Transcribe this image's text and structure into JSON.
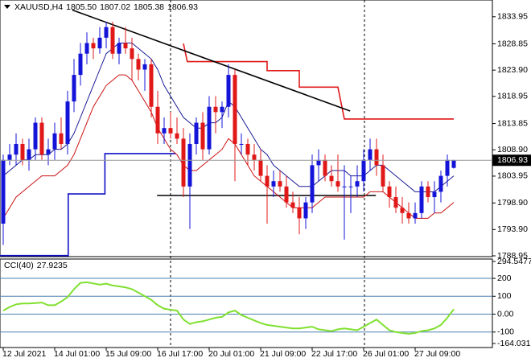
{
  "chart_data": {
    "type": "candlestick",
    "symbol": "XAUUSD,H4",
    "header_ohlc": [
      "1805.50",
      "1807.02",
      "1805.38",
      "1806.93"
    ],
    "categories": [
      "12 Jul 2021",
      null,
      null,
      null,
      null,
      null,
      null,
      null,
      "14 Jul 01:00",
      null,
      null,
      null,
      null,
      null,
      null,
      null,
      "15 Jul 09:00",
      null,
      null,
      null,
      null,
      null,
      null,
      null,
      "16 Jul 17:00",
      null,
      null,
      null,
      null,
      null,
      null,
      null,
      "20 Jul 01:00",
      null,
      null,
      null,
      null,
      null,
      null,
      null,
      "21 Jul 09:00",
      null,
      null,
      null,
      null,
      null,
      null,
      null,
      "22 Jul 17:00",
      null,
      null,
      null,
      null,
      null,
      null,
      null,
      "26 Jul 01:00",
      null,
      null,
      null,
      null,
      null,
      null,
      null,
      "27 Jul 09:00",
      null,
      null,
      null,
      null,
      null,
      null
    ],
    "open": [
      1795,
      1807,
      1808,
      1810,
      1807,
      1809,
      1814,
      1808,
      1809,
      1812,
      1810,
      1818,
      1823,
      1827,
      1829,
      1828,
      1830,
      1832,
      1827,
      1829,
      1828,
      1826,
      1824,
      1825,
      1817,
      1812,
      1813,
      1812,
      1811,
      1802,
      1810,
      1814,
      1809,
      1817,
      1816,
      1817,
      1823,
      1810,
      1810,
      1808,
      1807,
      1804,
      1802,
      1803,
      1802,
      1799,
      1798,
      1796,
      1799,
      1806,
      1807,
      1804,
      1803,
      1802,
      1802,
      1802,
      1803,
      1807,
      1809,
      1806,
      1802,
      1800,
      1798,
      1797,
      1796,
      1797,
      1802,
      1800,
      1801,
      1804,
      1805.5
    ],
    "high": [
      1808,
      1810,
      1812,
      1811,
      1811,
      1815,
      1815,
      1811,
      1814,
      1815,
      1820,
      1826,
      1829,
      1831,
      1830,
      1832,
      1833,
      1833,
      1830,
      1832,
      1830,
      1827,
      1826,
      1826,
      1820,
      1815,
      1816,
      1815,
      1813,
      1812,
      1815,
      1816,
      1819,
      1819,
      1818,
      1825,
      1824,
      1812,
      1811,
      1810,
      1809,
      1806,
      1805,
      1805,
      1804,
      1801,
      1800,
      1800,
      1808,
      1809,
      1808,
      1806,
      1808,
      1806,
      1804,
      1806,
      1809,
      1811,
      1811,
      1808,
      1803,
      1802,
      1800,
      1799,
      1799,
      1803,
      1803,
      1803,
      1805,
      1808,
      1807.02
    ],
    "low": [
      1791,
      1806,
      1806,
      1806,
      1805,
      1807,
      1807,
      1806,
      1807,
      1809,
      1808,
      1816,
      1821,
      1825,
      1826,
      1827,
      1828,
      1826,
      1825,
      1827,
      1822,
      1822,
      1820,
      1815,
      1810,
      1810,
      1811,
      1810,
      1800,
      1794,
      1808,
      1807,
      1808,
      1812,
      1813,
      1815,
      1803,
      1808,
      1806,
      1805,
      1803,
      1795,
      1800,
      1801,
      1798,
      1797,
      1793,
      1794,
      1797,
      1803,
      1803,
      1802,
      1801,
      1792,
      1797,
      1800,
      1801,
      1805,
      1804,
      1801,
      1798,
      1797,
      1795,
      1795,
      1795,
      1796,
      1799,
      1797,
      1799,
      1802,
      1805.38
    ],
    "close": [
      1807,
      1808,
      1810,
      1807,
      1809,
      1814,
      1808,
      1809,
      1812,
      1810,
      1818,
      1823,
      1827,
      1829,
      1828,
      1830,
      1832,
      1827,
      1829,
      1828,
      1826,
      1824,
      1825,
      1817,
      1812,
      1813,
      1812,
      1811,
      1802,
      1810,
      1814,
      1809,
      1817,
      1816,
      1817,
      1823,
      1810,
      1810,
      1808,
      1807,
      1804,
      1802,
      1803,
      1802,
      1799,
      1798,
      1796,
      1799,
      1806,
      1807,
      1804,
      1803,
      1802,
      1802,
      1802,
      1803,
      1807,
      1809,
      1806,
      1802,
      1800,
      1798,
      1797,
      1796,
      1797,
      1802,
      1800,
      1801,
      1804,
      1807,
      1806.93
    ],
    "up_color": "#1414d8",
    "down_color": "#e01818",
    "overlays": [
      {
        "color": "#1a1a96",
        "values": [
          1804,
          1805,
          1806,
          1807,
          1807,
          1808,
          1808,
          1808,
          1809,
          1809,
          1810,
          1812,
          1815,
          1818,
          1821,
          1824,
          1827,
          1828,
          1829,
          1829,
          1829,
          1828,
          1827,
          1826,
          1824,
          1821,
          1819,
          1817,
          1815,
          1814,
          1813,
          1813,
          1814,
          1814,
          1815,
          1818,
          1817,
          1815,
          1813,
          1811,
          1809,
          1808,
          1806,
          1805,
          1804,
          1803,
          1802,
          1802,
          1802,
          1803,
          1804,
          1805,
          1805,
          1805,
          1804,
          1804,
          1804,
          1805,
          1806,
          1806,
          1805,
          1804,
          1803,
          1802,
          1801,
          1801,
          1801,
          1801,
          1802,
          1803,
          1804
        ]
      },
      {
        "color": "#cc1010",
        "values": [
          1796,
          1798,
          1800,
          1801,
          1802,
          1803,
          1804,
          1804,
          1804,
          1805,
          1806,
          1808,
          1811,
          1814,
          1817,
          1819,
          1821,
          1822,
          1823,
          1823,
          1822,
          1820,
          1818,
          1816,
          1813,
          1811,
          1809,
          1808,
          1806,
          1805,
          1805,
          1806,
          1807,
          1808,
          1809,
          1811,
          1810,
          1808,
          1806,
          1804,
          1803,
          1802,
          1801,
          1800,
          1799,
          1798,
          1798,
          1798,
          1798,
          1799,
          1800,
          1800,
          1800,
          1800,
          1800,
          1800,
          1800,
          1801,
          1801,
          1801,
          1800,
          1799,
          1798,
          1797,
          1796,
          1796,
          1796,
          1797,
          1797,
          1798,
          1799
        ]
      }
    ],
    "drawings": [
      {
        "color": "#1010c8",
        "x": [
          -0.5,
          10.1,
          10.1,
          15.8,
          15.8,
          26.8
        ],
        "y": [
          1789,
          1789,
          1800.6,
          1800.6,
          1808.2,
          1808.2
        ]
      },
      {
        "color": "#e01818",
        "x": [
          28,
          28.6,
          41,
          41,
          46,
          46,
          52,
          53,
          70
        ],
        "y": [
          1828.9,
          1825.5,
          1825.5,
          1823.8,
          1823.8,
          1820.7,
          1820.7,
          1814.7,
          1814.7
        ]
      },
      {
        "color": "#000000",
        "x": [
          10.75,
          53.9
        ],
        "y": [
          1835.2,
          1816.2
        ]
      },
      {
        "color": "#000000",
        "x": [
          23.9,
          57.9
        ],
        "y": [
          1800.3,
          1800.3
        ]
      }
    ],
    "ylim": [
      1788.95,
      1837.1
    ],
    "yticks": [
      1788.95,
      {
        "value": 1793.9,
        "label": "1793.90"
      },
      {
        "value": 1798.9,
        "label": "1798.90"
      },
      1803.95,
      {
        "value": 1808.9,
        "label": "1808.90"
      },
      1813.85,
      1818.95,
      {
        "value": 1823.9,
        "label": "1823.90"
      },
      1828.85,
      1833.95
    ],
    "cci": {
      "label": "CCI(40)",
      "color": "#80e030",
      "level_color": "#4a7fb0",
      "values": [
        20,
        40,
        55,
        60,
        60,
        62,
        65,
        50,
        50,
        70,
        95,
        140,
        175,
        178,
        172,
        165,
        170,
        160,
        155,
        150,
        140,
        120,
        100,
        80,
        50,
        30,
        25,
        20,
        -30,
        -55,
        -45,
        -40,
        -30,
        -20,
        -15,
        10,
        20,
        -5,
        -20,
        -35,
        -50,
        -60,
        -65,
        -70,
        -75,
        -80,
        -80,
        -75,
        -70,
        -85,
        -90,
        -95,
        -85,
        -80,
        -85,
        -90,
        -70,
        -50,
        -30,
        -60,
        -90,
        -100,
        -105,
        -110,
        -105,
        -95,
        -90,
        -80,
        -60,
        -20,
        27.9235
      ],
      "ylim": [
        -164.0316,
        294.5477
      ],
      "yticks": [
        294.5477,
        200,
        100,
        {
          "value": 0,
          "label": "0.00"
        },
        -100,
        -164.0316
      ]
    }
  }
}
